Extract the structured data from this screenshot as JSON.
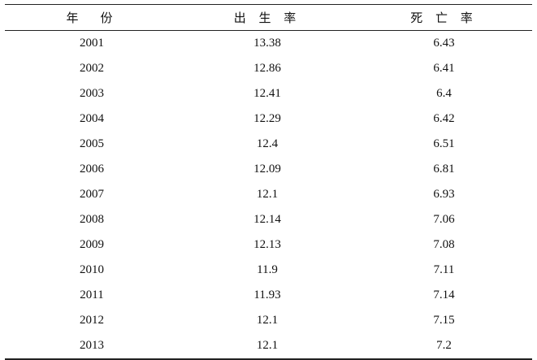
{
  "table": {
    "header": [
      "年　份",
      "出 生 率",
      "死 亡 率"
    ],
    "rows": [
      [
        "2001",
        "13.38",
        "6.43"
      ],
      [
        "2002",
        "12.86",
        "6.41"
      ],
      [
        "2003",
        "12.41",
        "6.4"
      ],
      [
        "2004",
        "12.29",
        "6.42"
      ],
      [
        "2005",
        "12.4",
        "6.51"
      ],
      [
        "2006",
        "12.09",
        "6.81"
      ],
      [
        "2007",
        "12.1",
        "6.93"
      ],
      [
        "2008",
        "12.14",
        "7.06"
      ],
      [
        "2009",
        "12.13",
        "7.08"
      ],
      [
        "2010",
        "11.9",
        "7.11"
      ],
      [
        "2011",
        "11.93",
        "7.14"
      ],
      [
        "2012",
        "12.1",
        "7.15"
      ],
      [
        "2013",
        "12.1",
        "7.2"
      ]
    ]
  }
}
